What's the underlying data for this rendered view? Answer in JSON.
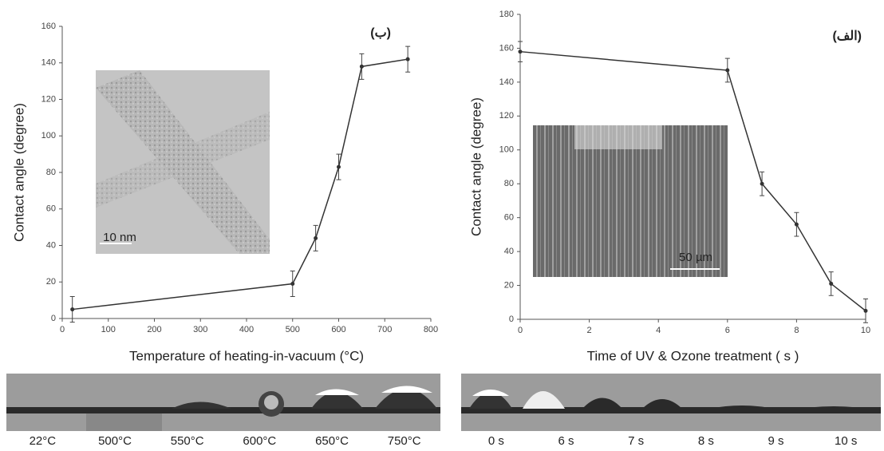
{
  "chart_data": [
    {
      "type": "line",
      "panel_label": "(ب)",
      "xlabel": "Temperature of heating-in-vacuum (°C)",
      "ylabel": "Contact angle (degree)",
      "x": [
        22,
        500,
        550,
        600,
        650,
        750
      ],
      "values": [
        5,
        19,
        44,
        83,
        138,
        142
      ],
      "errors": [
        7,
        7,
        7,
        7,
        7,
        7
      ],
      "color": "#333333",
      "xlim": [
        0,
        800
      ],
      "xticks": [
        0,
        100,
        200,
        300,
        400,
        500,
        600,
        700,
        800
      ],
      "ylim": [
        0,
        160
      ],
      "yticks": [
        0,
        20,
        40,
        60,
        80,
        100,
        120,
        140,
        160
      ],
      "inset_label": "10 nm"
    },
    {
      "type": "line",
      "panel_label": "(الف)",
      "xlabel": "Time of UV & Ozone treatment ( s )",
      "ylabel": "Contact angle (degree)",
      "x": [
        0,
        6,
        7,
        8,
        9,
        10
      ],
      "values": [
        158,
        147,
        80,
        56,
        21,
        5
      ],
      "errors": [
        6,
        7,
        7,
        7,
        7,
        7
      ],
      "color": "#333333",
      "xlim": [
        0,
        10
      ],
      "xticks": [
        0,
        2,
        4,
        6,
        8,
        10
      ],
      "ylim": [
        0,
        180
      ],
      "yticks": [
        0,
        20,
        40,
        60,
        80,
        100,
        120,
        140,
        160,
        180
      ],
      "inset_label": "50 µm"
    }
  ],
  "photos": [
    {
      "labels": [
        "22°C",
        "500°C",
        "550°C",
        "600°C",
        "650°C",
        "750°C"
      ]
    },
    {
      "labels": [
        "0 s",
        "6 s",
        "7 s",
        "8 s",
        "9 s",
        "10 s"
      ]
    }
  ]
}
